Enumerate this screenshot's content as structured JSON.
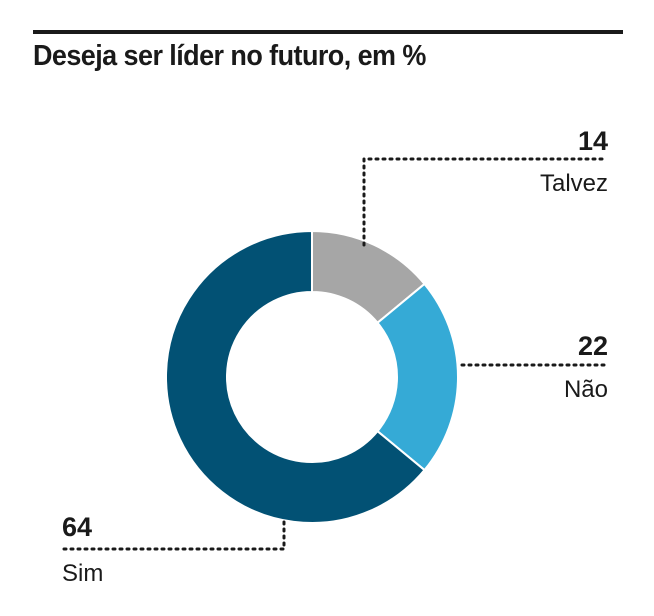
{
  "chart_data": {
    "type": "pie",
    "title": "Deseja ser líder no futuro, em %",
    "donut": true,
    "categories": [
      "Talvez",
      "Não",
      "Sim"
    ],
    "values": [
      14,
      22,
      64
    ],
    "colors": [
      "#a6a6a6",
      "#35aad6",
      "#025174"
    ]
  }
}
